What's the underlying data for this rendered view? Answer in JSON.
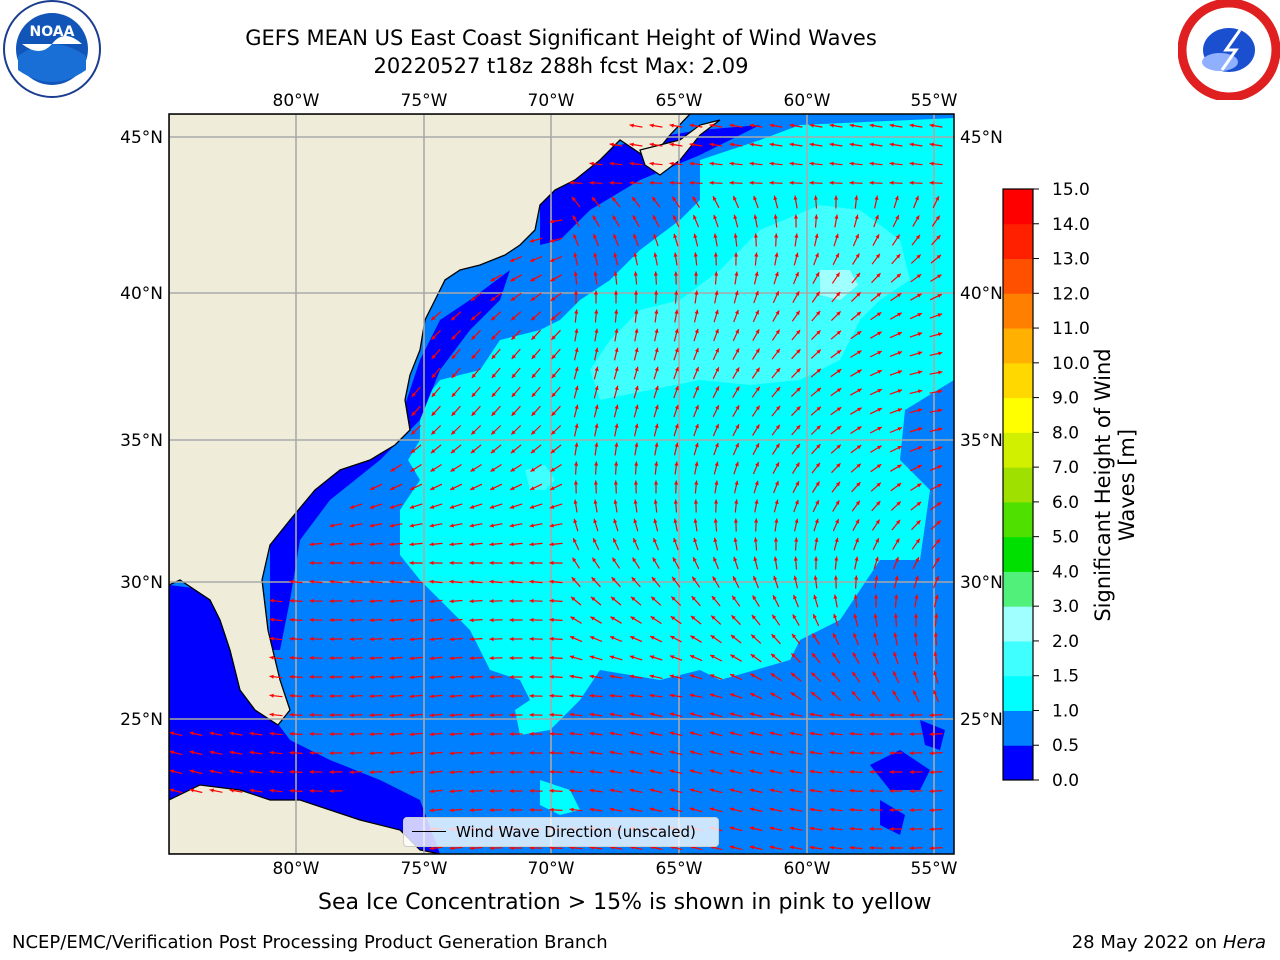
{
  "title": {
    "line1": "GEFS MEAN US East Coast Significant Height of Wind Waves",
    "line2": "20220527 t18z 288h fcst   Max: 2.09"
  },
  "logos": {
    "left": "NOAA",
    "right": "NATIONAL WEATHER SERVICE"
  },
  "map": {
    "lon_labels": [
      "80°W",
      "75°W",
      "70°W",
      "65°W",
      "60°W",
      "55°W"
    ],
    "lat_labels": [
      "45°N",
      "40°N",
      "35°N",
      "30°N",
      "25°N"
    ],
    "land_color": "#efedda",
    "legend": "Wind Wave Direction (unscaled)",
    "arrow_color": "#ff0000"
  },
  "colorbar": {
    "label_line1": "Significant Height of Wind",
    "label_line2": "Waves [m]",
    "ticks": [
      "0.0",
      "0.5",
      "1.0",
      "1.5",
      "2.0",
      "3.0",
      "4.0",
      "5.0",
      "6.0",
      "7.0",
      "8.0",
      "9.0",
      "10.0",
      "11.0",
      "12.0",
      "13.0",
      "14.0",
      "15.0"
    ],
    "colors": [
      "#0000ff",
      "#007fff",
      "#00ffff",
      "#40ffff",
      "#a0ffff",
      "#50f07a",
      "#00e000",
      "#50e000",
      "#a0e000",
      "#d0f000",
      "#ffff00",
      "#ffd800",
      "#ffb000",
      "#ff8000",
      "#ff5000",
      "#ff2000",
      "#ff0000"
    ]
  },
  "ice_note": "Sea Ice Concentration > 15% is shown in pink to yellow",
  "footer": {
    "left": "NCEP/EMC/Verification Post Processing Product Generation Branch",
    "right_date": "28 May 2022 on",
    "right_host": "Hera"
  }
}
